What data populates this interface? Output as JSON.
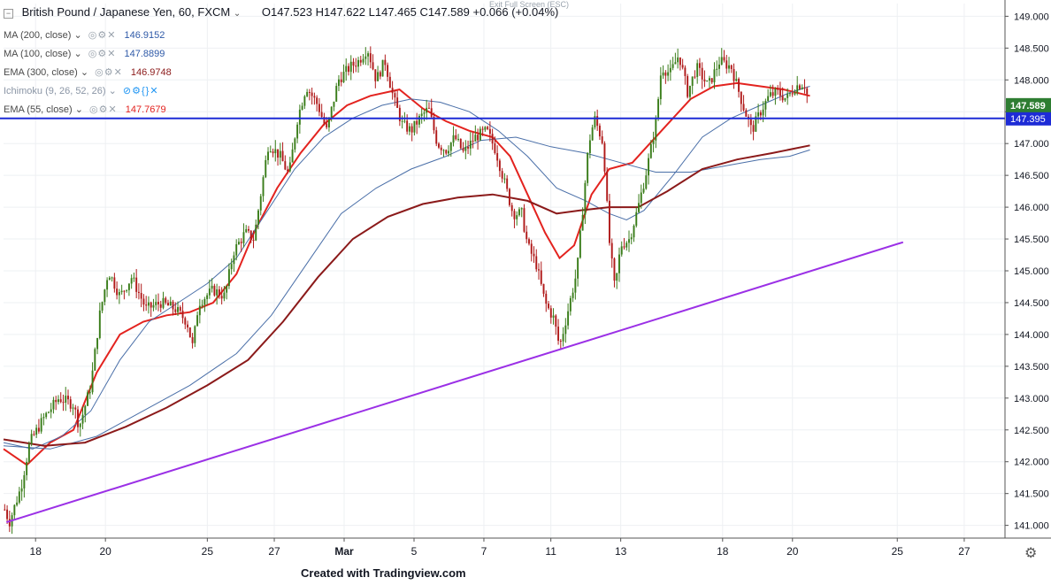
{
  "header": {
    "symbol": "British Pound / Japanese Yen, 60, FXCM",
    "open": "O147.523",
    "high": "H147.622",
    "low": "L147.465",
    "close": "C147.589",
    "change": "+0.066 (+0.04%)",
    "exit_fullscreen": "Exit Full Screen (ESC)"
  },
  "indicators": [
    {
      "label": "MA (200, close)",
      "value": "146.9152",
      "color": "#2f5aa8"
    },
    {
      "label": "MA (100, close)",
      "value": "147.8899",
      "color": "#2f5aa8"
    },
    {
      "label": "EMA (300, close)",
      "value": "146.9748",
      "color": "#8b1a1a"
    },
    {
      "label": "Ichimoku (9, 26, 52, 26)",
      "value": "",
      "color": "#2196f3"
    },
    {
      "label": "EMA (55, close)",
      "value": "147.7679",
      "color": "#e3231f"
    }
  ],
  "footer": "Created with Tradingview.com",
  "colors": {
    "up": "#3a7d1a",
    "down": "#b01a1a",
    "ema55": "#e3231f",
    "ma": "#4a6fa8",
    "ema300": "#8b1a1a",
    "trendline": "#9b30e6",
    "hline": "#1d2bd6"
  },
  "chart_data": {
    "type": "line",
    "title": "British Pound / Japanese Yen, 60, FXCM",
    "ylim": [
      140.8,
      149.2
    ],
    "y_ticks": [
      141.0,
      141.5,
      142.0,
      142.5,
      143.0,
      143.5,
      144.0,
      144.5,
      145.0,
      145.5,
      146.0,
      146.5,
      147.0,
      147.5,
      148.0,
      148.5,
      149.0
    ],
    "y_tick_labels": [
      "141.000",
      "141.500",
      "142.000",
      "142.500",
      "143.000",
      "143.500",
      "144.000",
      "144.500",
      "145.000",
      "145.500",
      "146.000",
      "146.500",
      "147.000",
      "147.500",
      "148.000",
      "148.500",
      "149.000"
    ],
    "x_ticks": [
      {
        "label": "18",
        "t": 0.55
      },
      {
        "label": "20",
        "t": 1.75
      },
      {
        "label": "25",
        "t": 3.5
      },
      {
        "label": "27",
        "t": 4.65
      },
      {
        "label": "Mar",
        "t": 5.85
      },
      {
        "label": "5",
        "t": 7.05
      },
      {
        "label": "7",
        "t": 8.25
      },
      {
        "label": "11",
        "t": 9.4
      },
      {
        "label": "13",
        "t": 10.6
      },
      {
        "label": "18",
        "t": 12.35
      },
      {
        "label": "20",
        "t": 13.55
      },
      {
        "label": "25",
        "t": 15.35
      },
      {
        "label": "27",
        "t": 16.5
      }
    ],
    "t_range": [
      0,
      17.2
    ],
    "last_bar_t": 13.8,
    "price_path": [
      [
        0,
        141.3
      ],
      [
        0.1,
        141.05
      ],
      [
        0.3,
        141.6
      ],
      [
        0.45,
        142.3
      ],
      [
        0.7,
        142.7
      ],
      [
        0.95,
        143.0
      ],
      [
        1.2,
        142.9
      ],
      [
        1.3,
        142.55
      ],
      [
        1.5,
        143.2
      ],
      [
        1.65,
        144.3
      ],
      [
        1.8,
        145.0
      ],
      [
        2.0,
        144.6
      ],
      [
        2.2,
        144.9
      ],
      [
        2.45,
        144.4
      ],
      [
        2.7,
        144.5
      ],
      [
        2.95,
        144.4
      ],
      [
        3.15,
        144.2
      ],
      [
        3.25,
        143.8
      ],
      [
        3.35,
        144.5
      ],
      [
        3.6,
        144.7
      ],
      [
        3.8,
        144.6
      ],
      [
        3.95,
        145.3
      ],
      [
        4.15,
        145.6
      ],
      [
        4.3,
        145.5
      ],
      [
        4.45,
        146.4
      ],
      [
        4.55,
        147.0
      ],
      [
        4.75,
        146.8
      ],
      [
        4.9,
        146.5
      ],
      [
        5.05,
        147.4
      ],
      [
        5.2,
        147.9
      ],
      [
        5.4,
        147.6
      ],
      [
        5.55,
        147.2
      ],
      [
        5.75,
        148.0
      ],
      [
        5.95,
        148.2
      ],
      [
        6.1,
        148.3
      ],
      [
        6.25,
        148.5
      ],
      [
        6.4,
        148.0
      ],
      [
        6.55,
        148.3
      ],
      [
        6.7,
        147.7
      ],
      [
        6.85,
        147.3
      ],
      [
        7.0,
        147.2
      ],
      [
        7.15,
        147.4
      ],
      [
        7.3,
        147.55
      ],
      [
        7.45,
        147.0
      ],
      [
        7.6,
        146.9
      ],
      [
        7.75,
        147.1
      ],
      [
        7.9,
        146.85
      ],
      [
        8.1,
        147.1
      ],
      [
        8.3,
        147.2
      ],
      [
        8.45,
        146.9
      ],
      [
        8.6,
        146.4
      ],
      [
        8.75,
        145.9
      ],
      [
        8.9,
        145.9
      ],
      [
        9.0,
        145.4
      ],
      [
        9.15,
        145.1
      ],
      [
        9.3,
        144.5
      ],
      [
        9.45,
        144.25
      ],
      [
        9.55,
        143.8
      ],
      [
        9.7,
        144.4
      ],
      [
        9.85,
        145.0
      ],
      [
        9.95,
        146.0
      ],
      [
        10.05,
        147.0
      ],
      [
        10.15,
        147.4
      ],
      [
        10.3,
        147.0
      ],
      [
        10.4,
        145.5
      ],
      [
        10.5,
        144.7
      ],
      [
        10.6,
        145.4
      ],
      [
        10.75,
        145.5
      ],
      [
        10.9,
        146.0
      ],
      [
        11.05,
        146.6
      ],
      [
        11.2,
        147.3
      ],
      [
        11.3,
        148.2
      ],
      [
        11.45,
        148.1
      ],
      [
        11.6,
        148.4
      ],
      [
        11.75,
        147.8
      ],
      [
        11.9,
        148.2
      ],
      [
        12.1,
        147.9
      ],
      [
        12.3,
        148.3
      ],
      [
        12.5,
        148.2
      ],
      [
        12.7,
        147.6
      ],
      [
        12.85,
        147.2
      ],
      [
        13.0,
        147.5
      ],
      [
        13.15,
        147.75
      ],
      [
        13.3,
        147.8
      ],
      [
        13.45,
        147.7
      ],
      [
        13.6,
        147.9
      ],
      [
        13.75,
        147.95
      ],
      [
        13.85,
        147.6
      ]
    ],
    "series": [
      {
        "name": "EMA (55, close)",
        "key": "ema55",
        "points": [
          [
            0,
            142.2
          ],
          [
            0.4,
            141.95
          ],
          [
            0.8,
            142.3
          ],
          [
            1.2,
            142.5
          ],
          [
            1.6,
            143.4
          ],
          [
            2.0,
            144.0
          ],
          [
            2.4,
            144.2
          ],
          [
            2.8,
            144.3
          ],
          [
            3.2,
            144.35
          ],
          [
            3.6,
            144.5
          ],
          [
            4.0,
            144.95
          ],
          [
            4.3,
            145.6
          ],
          [
            4.7,
            146.3
          ],
          [
            5.1,
            146.85
          ],
          [
            5.5,
            147.3
          ],
          [
            5.9,
            147.6
          ],
          [
            6.3,
            147.75
          ],
          [
            6.8,
            147.85
          ],
          [
            7.2,
            147.55
          ],
          [
            7.6,
            147.35
          ],
          [
            8.0,
            147.2
          ],
          [
            8.4,
            147.1
          ],
          [
            8.7,
            146.8
          ],
          [
            9.0,
            146.2
          ],
          [
            9.3,
            145.6
          ],
          [
            9.55,
            145.2
          ],
          [
            9.8,
            145.4
          ],
          [
            10.1,
            146.2
          ],
          [
            10.4,
            146.6
          ],
          [
            10.8,
            146.7
          ],
          [
            11.1,
            147.0
          ],
          [
            11.4,
            147.3
          ],
          [
            11.8,
            147.7
          ],
          [
            12.2,
            147.9
          ],
          [
            12.6,
            147.95
          ],
          [
            13.0,
            147.9
          ],
          [
            13.4,
            147.85
          ],
          [
            13.85,
            147.75
          ]
        ]
      },
      {
        "name": "MA (100, close)",
        "key": "ma100",
        "points": [
          [
            0,
            142.3
          ],
          [
            0.5,
            142.2
          ],
          [
            1.0,
            142.4
          ],
          [
            1.5,
            142.8
          ],
          [
            2.0,
            143.6
          ],
          [
            2.5,
            144.2
          ],
          [
            3.0,
            144.5
          ],
          [
            3.5,
            144.8
          ],
          [
            4.0,
            145.2
          ],
          [
            4.5,
            145.9
          ],
          [
            5.0,
            146.6
          ],
          [
            5.5,
            147.1
          ],
          [
            6.0,
            147.4
          ],
          [
            6.5,
            147.6
          ],
          [
            7.0,
            147.7
          ],
          [
            7.5,
            147.65
          ],
          [
            8.0,
            147.5
          ],
          [
            8.5,
            147.2
          ],
          [
            9.0,
            146.8
          ],
          [
            9.5,
            146.3
          ],
          [
            10.0,
            146.1
          ],
          [
            10.4,
            145.9
          ],
          [
            10.7,
            145.8
          ],
          [
            11.0,
            145.95
          ],
          [
            11.5,
            146.5
          ],
          [
            12.0,
            147.1
          ],
          [
            12.5,
            147.4
          ],
          [
            13.0,
            147.6
          ],
          [
            13.5,
            147.8
          ],
          [
            13.85,
            147.9
          ]
        ]
      },
      {
        "name": "MA (200, close)",
        "key": "ma200",
        "points": [
          [
            0,
            142.25
          ],
          [
            0.8,
            142.2
          ],
          [
            1.6,
            142.4
          ],
          [
            2.4,
            142.8
          ],
          [
            3.2,
            143.2
          ],
          [
            4.0,
            143.7
          ],
          [
            4.6,
            144.3
          ],
          [
            5.2,
            145.1
          ],
          [
            5.8,
            145.9
          ],
          [
            6.4,
            146.3
          ],
          [
            7.0,
            146.6
          ],
          [
            7.6,
            146.8
          ],
          [
            8.2,
            147.05
          ],
          [
            8.8,
            147.1
          ],
          [
            9.4,
            146.95
          ],
          [
            10.0,
            146.85
          ],
          [
            10.6,
            146.7
          ],
          [
            11.2,
            146.55
          ],
          [
            11.8,
            146.55
          ],
          [
            12.4,
            146.65
          ],
          [
            13.0,
            146.75
          ],
          [
            13.5,
            146.8
          ],
          [
            13.85,
            146.9
          ]
        ]
      },
      {
        "name": "EMA (300, close)",
        "key": "ema300",
        "points": [
          [
            0,
            142.35
          ],
          [
            0.7,
            142.25
          ],
          [
            1.4,
            142.3
          ],
          [
            2.1,
            142.55
          ],
          [
            2.8,
            142.85
          ],
          [
            3.5,
            143.2
          ],
          [
            4.2,
            143.6
          ],
          [
            4.8,
            144.2
          ],
          [
            5.4,
            144.9
          ],
          [
            6.0,
            145.5
          ],
          [
            6.6,
            145.85
          ],
          [
            7.2,
            146.05
          ],
          [
            7.8,
            146.15
          ],
          [
            8.4,
            146.2
          ],
          [
            9.0,
            146.1
          ],
          [
            9.5,
            145.9
          ],
          [
            9.9,
            145.95
          ],
          [
            10.4,
            146.0
          ],
          [
            10.9,
            146.0
          ],
          [
            11.4,
            146.25
          ],
          [
            12.0,
            146.6
          ],
          [
            12.6,
            146.75
          ],
          [
            13.2,
            146.85
          ],
          [
            13.85,
            146.97
          ]
        ]
      }
    ],
    "trendline": {
      "from": [
        0.05,
        141.05
      ],
      "to": [
        15.45,
        145.45
      ]
    },
    "horizontal_line": {
      "value": 147.395,
      "label": "147.395"
    },
    "last_price": {
      "value": 147.589,
      "label": "147.589"
    }
  }
}
